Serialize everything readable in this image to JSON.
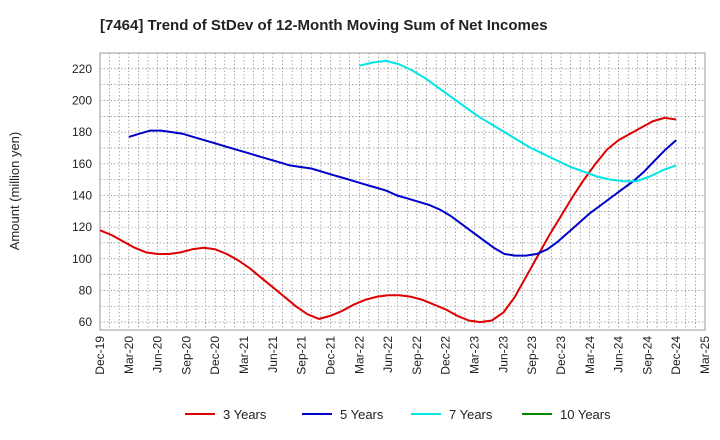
{
  "chart_data": {
    "type": "line",
    "title": "[7464]  Trend of StDev of 12-Month Moving Sum of Net Incomes",
    "ylabel": "Amount (million yen)",
    "xlabel": "",
    "ylim": [
      55,
      230
    ],
    "yticks": [
      60,
      80,
      100,
      120,
      140,
      160,
      180,
      200,
      220
    ],
    "xticks": [
      "Dec-19",
      "Mar-20",
      "Jun-20",
      "Sep-20",
      "Dec-20",
      "Mar-21",
      "Jun-21",
      "Sep-21",
      "Dec-21",
      "Mar-22",
      "Jun-22",
      "Sep-22",
      "Dec-22",
      "Mar-23",
      "Jun-23",
      "Sep-23",
      "Dec-23",
      "Mar-24",
      "Jun-24",
      "Sep-24",
      "Dec-24",
      "Mar-25"
    ],
    "grid": true,
    "legend_position": "bottom",
    "series": [
      {
        "name": "3 Years",
        "color": "#dd0000",
        "start_index": 0,
        "values": [
          118,
          115,
          111,
          107,
          104,
          103,
          103,
          104,
          106,
          107,
          106,
          103,
          99,
          94,
          88,
          82,
          76,
          70,
          65,
          62,
          64,
          67,
          71,
          74,
          76,
          77,
          77,
          76,
          74,
          71,
          68,
          64,
          61,
          60,
          61,
          66,
          76,
          89,
          102,
          115,
          127,
          139,
          150,
          160,
          169,
          175,
          179,
          183,
          187,
          189,
          188
        ]
      },
      {
        "name": "5 Years",
        "color": "#0000cc",
        "start_index": 24,
        "values": [
          177,
          179,
          181,
          181,
          180,
          179,
          177,
          175,
          173,
          171,
          169,
          167,
          165,
          163,
          161,
          159,
          158,
          157,
          155,
          153,
          151,
          149,
          147,
          145,
          143,
          140,
          138,
          136,
          134,
          131,
          127,
          122,
          117,
          112,
          107,
          103,
          102,
          102,
          103,
          106,
          111,
          117,
          123,
          129,
          134,
          139,
          144,
          149,
          155,
          162,
          169,
          175
        ],
        "start_tick": 1
      },
      {
        "name": "7 Years",
        "color": "#00e5e5",
        "start_tick": 9,
        "values": [
          222,
          224,
          225,
          223,
          219,
          214,
          208,
          202,
          196,
          190,
          185,
          180,
          175,
          170,
          166,
          162,
          158,
          155,
          152,
          150,
          149,
          149,
          152,
          156,
          159
        ]
      },
      {
        "name": "10 Years",
        "color": "#008800",
        "start_tick": 0,
        "values": []
      }
    ]
  }
}
